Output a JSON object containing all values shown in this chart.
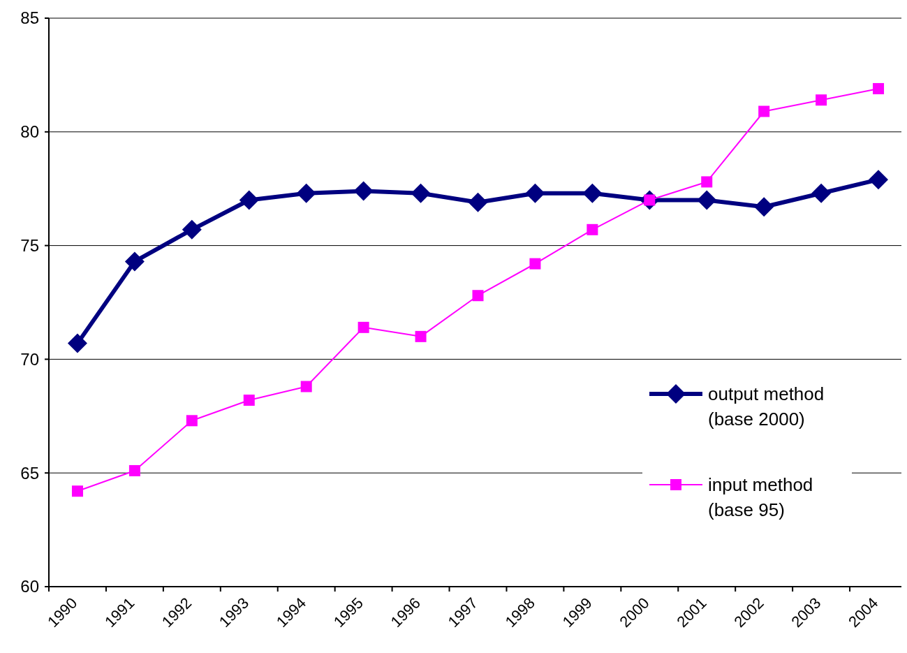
{
  "chart_data": {
    "type": "line",
    "categories": [
      "1990",
      "1991",
      "1992",
      "1993",
      "1994",
      "1995",
      "1996",
      "1997",
      "1998",
      "1999",
      "2000",
      "2001",
      "2002",
      "2003",
      "2004"
    ],
    "series": [
      {
        "name": "output method (base 2000)",
        "color": "#000080",
        "marker": "diamond",
        "values": [
          70.7,
          74.3,
          75.7,
          77.0,
          77.3,
          77.4,
          77.3,
          76.9,
          77.3,
          77.3,
          77.0,
          77.0,
          76.7,
          77.3,
          77.9
        ]
      },
      {
        "name": "input method (base 95)",
        "color": "#ff00ff",
        "marker": "square",
        "values": [
          64.2,
          65.1,
          67.3,
          68.2,
          68.8,
          71.4,
          71.0,
          72.8,
          74.2,
          75.7,
          77.0,
          77.8,
          80.9,
          81.4,
          81.9
        ]
      }
    ],
    "ylim": [
      60,
      85
    ],
    "yticks": [
      60,
      65,
      70,
      75,
      80,
      85
    ],
    "grid": "y",
    "legend": "right"
  }
}
